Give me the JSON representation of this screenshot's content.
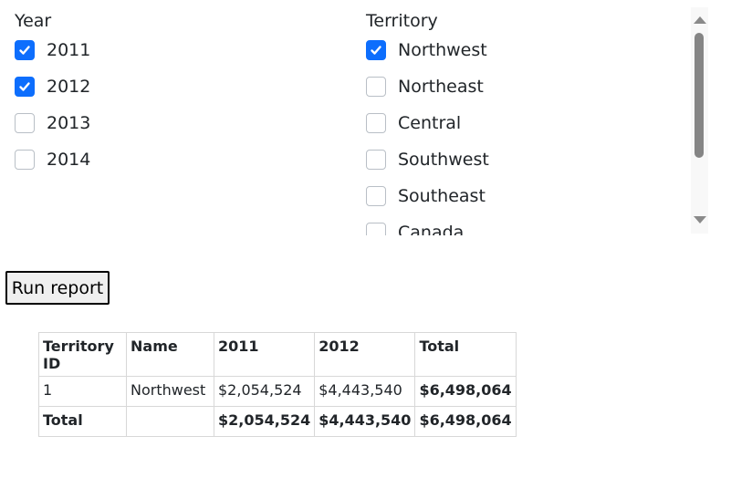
{
  "year_filter": {
    "label": "Year",
    "options": [
      {
        "label": "2011",
        "checked": true
      },
      {
        "label": "2012",
        "checked": true
      },
      {
        "label": "2013",
        "checked": false
      },
      {
        "label": "2014",
        "checked": false
      }
    ]
  },
  "territory_filter": {
    "label": "Territory",
    "options": [
      {
        "label": "Northwest",
        "checked": true
      },
      {
        "label": "Northeast",
        "checked": false
      },
      {
        "label": "Central",
        "checked": false
      },
      {
        "label": "Southwest",
        "checked": false
      },
      {
        "label": "Southeast",
        "checked": false
      },
      {
        "label": "Canada",
        "checked": false
      }
    ]
  },
  "run_button": {
    "label": "Run report"
  },
  "report_table": {
    "headers": [
      "Territory ID",
      "Name",
      "2011",
      "2012",
      "Total"
    ],
    "rows": [
      [
        "1",
        "Northwest",
        "$2,054,524",
        "$4,443,540",
        "$6,498,064"
      ]
    ],
    "total_row": [
      "Total",
      "",
      "$2,054,524",
      "$4,443,540",
      "$6,498,064"
    ]
  },
  "colors": {
    "accent": "#0d6efd",
    "border": "#d8d8d8",
    "text": "#212529"
  }
}
